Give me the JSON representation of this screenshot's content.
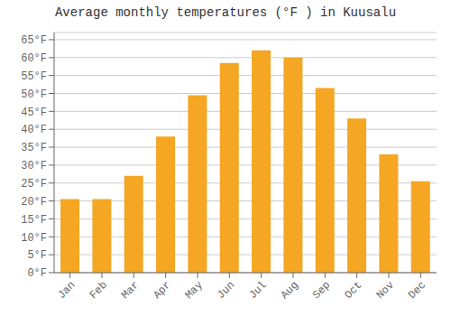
{
  "chart_data": {
    "type": "bar",
    "title": "Average monthly temperatures (°F ) in Kuusalu",
    "categories": [
      "Jan",
      "Feb",
      "Mar",
      "Apr",
      "May",
      "Jun",
      "Jul",
      "Aug",
      "Sep",
      "Oct",
      "Nov",
      "Dec"
    ],
    "values": [
      20.5,
      20.5,
      27.0,
      38.0,
      49.5,
      58.5,
      62.0,
      60.0,
      51.5,
      43.0,
      33.0,
      25.5
    ],
    "color": "#F5A623",
    "ylim": [
      0,
      67
    ],
    "yticks": [
      {
        "value": 0,
        "label": "0°F"
      },
      {
        "value": 5,
        "label": "5°F"
      },
      {
        "value": 10,
        "label": "10°F"
      },
      {
        "value": 15,
        "label": "15°F"
      },
      {
        "value": 20,
        "label": "20°F"
      },
      {
        "value": 25,
        "label": "25°F"
      },
      {
        "value": 30,
        "label": "30°F"
      },
      {
        "value": 35,
        "label": "35°F"
      },
      {
        "value": 40,
        "label": "40°F"
      },
      {
        "value": 45,
        "label": "45°F"
      },
      {
        "value": 50,
        "label": "50°F"
      },
      {
        "value": 55,
        "label": "55°F"
      },
      {
        "value": 60,
        "label": "60°F"
      },
      {
        "value": 65,
        "label": "65°F"
      }
    ],
    "grid": true
  }
}
